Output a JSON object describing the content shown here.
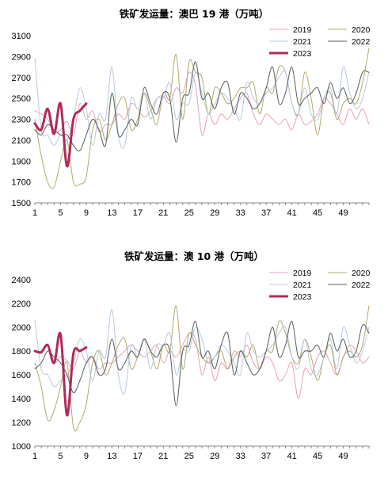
{
  "chart_data": [
    {
      "type": "line",
      "title": "铁矿发运量：澳巴 19 港（万吨）",
      "xlabel": "",
      "ylabel": "",
      "ylim": [
        1500,
        3100
      ],
      "yticks": [
        "1500",
        "1700",
        "1900",
        "2100",
        "2300",
        "2500",
        "2700",
        "2900",
        "3100"
      ],
      "xticks": [
        "1",
        "5",
        "9",
        "13",
        "17",
        "21",
        "25",
        "29",
        "33",
        "37",
        "41",
        "45",
        "49"
      ],
      "xlim": [
        1,
        53
      ],
      "legend_position": "top-right",
      "series": [
        {
          "name": "2019",
          "color": "#e3a3b7",
          "width": 1,
          "values": [
            2380,
            2350,
            2300,
            2180,
            2200,
            2280,
            2150,
            2450,
            2300,
            2380,
            2180,
            2250,
            2250,
            2350,
            2300,
            2450,
            2400,
            2320,
            2380,
            2500,
            2520,
            2450,
            2600,
            2550,
            2750,
            2620,
            2150,
            2350,
            2250,
            2350,
            2300,
            2400,
            2500,
            2550,
            2350,
            2250,
            2350,
            2300,
            2250,
            2300,
            2200,
            2350,
            2250,
            2280,
            2350,
            2500,
            2450,
            2350,
            2250,
            2400,
            2300,
            2400,
            2250
          ]
        },
        {
          "name": "2020",
          "color": "#b3a86b",
          "width": 1,
          "values": [
            2300,
            1950,
            1700,
            1650,
            1900,
            2100,
            1700,
            1680,
            1750,
            2200,
            2300,
            2100,
            2250,
            2450,
            2500,
            2200,
            2300,
            2550,
            2400,
            2250,
            2550,
            2500,
            2920,
            2300,
            2850,
            2750,
            2700,
            2350,
            2600,
            2550,
            2450,
            2500,
            2600,
            2600,
            2650,
            2350,
            2600,
            2550,
            2800,
            2750,
            2450,
            2350,
            2750,
            2500,
            2150,
            2500,
            2550,
            2300,
            2450,
            2500,
            2450,
            2650,
            2980
          ]
        },
        {
          "name": "2021",
          "color": "#b8c9de",
          "width": 1,
          "values": [
            2880,
            2200,
            2150,
            2050,
            2150,
            2100,
            2300,
            2600,
            2400,
            2050,
            2350,
            2300,
            2800,
            2150,
            2050,
            2500,
            2400,
            2550,
            2300,
            2500,
            2500,
            2650,
            2300,
            2450,
            2450,
            2750,
            2550,
            2350,
            2450,
            2550,
            2500,
            2400,
            2300,
            2650,
            2500,
            2450,
            2550,
            2600,
            2700,
            2750,
            2450,
            2350,
            2600,
            2350,
            2300,
            2500,
            2600,
            2350,
            2800,
            2550,
            2400,
            2500,
            2750
          ]
        },
        {
          "name": "2022",
          "color": "#525e5e",
          "width": 1,
          "values": [
            2200,
            2150,
            2250,
            2200,
            2150,
            2150,
            2050,
            2000,
            2150,
            2300,
            2200,
            2050,
            2550,
            2150,
            2200,
            2300,
            2250,
            2600,
            2450,
            2350,
            2550,
            2500,
            2080,
            2500,
            2550,
            2850,
            2500,
            2550,
            2400,
            2600,
            2650,
            2350,
            2550,
            2500,
            2400,
            2450,
            2600,
            2800,
            2450,
            2550,
            2800,
            2450,
            2500,
            2550,
            2600,
            2450,
            2650,
            2500,
            2600,
            2450,
            2550,
            2750,
            2750
          ]
        },
        {
          "name": "2023",
          "color": "#b02a5a",
          "width": 3,
          "values": [
            2260,
            2200,
            2400,
            2160,
            2450,
            1850,
            2300,
            2380,
            2450
          ]
        }
      ]
    },
    {
      "type": "line",
      "title": "铁矿发运量：澳 10 港（万吨）",
      "xlabel": "",
      "ylabel": "",
      "ylim": [
        1000,
        2400
      ],
      "yticks": [
        "1000",
        "1200",
        "1400",
        "1600",
        "1800",
        "2000",
        "2200",
        "2400"
      ],
      "xticks": [
        "1",
        "5",
        "9",
        "13",
        "17",
        "21",
        "25",
        "29",
        "33",
        "37",
        "41",
        "45",
        "49"
      ],
      "xlim": [
        1,
        53
      ],
      "legend_position": "top-right",
      "series": [
        {
          "name": "2019",
          "color": "#e3a3b7",
          "width": 1,
          "values": [
            1800,
            1780,
            1850,
            1700,
            1750,
            1720,
            1650,
            1800,
            1700,
            1750,
            1650,
            1700,
            1700,
            1750,
            1800,
            1850,
            1800,
            1750,
            1800,
            1850,
            1700,
            1800,
            1750,
            1850,
            1950,
            1900,
            1600,
            1750,
            1550,
            1700,
            1650,
            1800,
            1750,
            1850,
            1700,
            1650,
            1750,
            1700,
            1550,
            1600,
            1700,
            1400,
            1650,
            1600,
            1750,
            1800,
            1700,
            1600,
            1750,
            1850,
            1800,
            1700,
            1750
          ]
        },
        {
          "name": "2020",
          "color": "#b3a86b",
          "width": 1,
          "values": [
            1700,
            1500,
            1220,
            1300,
            1500,
            1700,
            1160,
            1200,
            1350,
            1700,
            1800,
            1600,
            1700,
            1850,
            1900,
            1650,
            1750,
            1900,
            1800,
            1650,
            1850,
            1800,
            2180,
            1650,
            1950,
            1850,
            1750,
            1700,
            1750,
            1800,
            1650,
            1750,
            1800,
            1750,
            1850,
            1650,
            1800,
            1800,
            2050,
            1950,
            1750,
            1700,
            1900,
            1750,
            1550,
            1750,
            1850,
            1600,
            1750,
            1800,
            1750,
            1850,
            2180
          ]
        },
        {
          "name": "2021",
          "color": "#b8c9de",
          "width": 1,
          "values": [
            2060,
            1650,
            1600,
            1500,
            1550,
            1600,
            1700,
            1900,
            1800,
            1550,
            1800,
            1750,
            2150,
            1600,
            1450,
            1850,
            1750,
            1900,
            1650,
            1850,
            1850,
            1950,
            1600,
            1800,
            1800,
            2000,
            1900,
            1700,
            1750,
            1850,
            1800,
            1700,
            1600,
            1950,
            1800,
            1750,
            1800,
            1850,
            1950,
            2000,
            1750,
            1650,
            1900,
            1650,
            1600,
            1750,
            1900,
            1650,
            2000,
            1850,
            1700,
            1800,
            2000
          ]
        },
        {
          "name": "2022",
          "color": "#525e5e",
          "width": 1,
          "values": [
            1650,
            1700,
            1800,
            1750,
            1700,
            1600,
            1450,
            1550,
            1700,
            1750,
            1600,
            1650,
            1900,
            1650,
            1700,
            1800,
            1750,
            1900,
            1800,
            1750,
            1850,
            1800,
            1340,
            1800,
            1850,
            2050,
            1750,
            1800,
            1650,
            1850,
            1950,
            1600,
            1800,
            1700,
            1600,
            1650,
            1800,
            2000,
            1750,
            1850,
            2050,
            1750,
            1800,
            1800,
            1850,
            1750,
            1950,
            1800,
            1900,
            1750,
            1800,
            2020,
            1950
          ]
        },
        {
          "name": "2023",
          "color": "#b02a5a",
          "width": 3,
          "values": [
            1800,
            1790,
            1850,
            1700,
            1940,
            1260,
            1780,
            1800,
            1830
          ]
        }
      ]
    }
  ]
}
